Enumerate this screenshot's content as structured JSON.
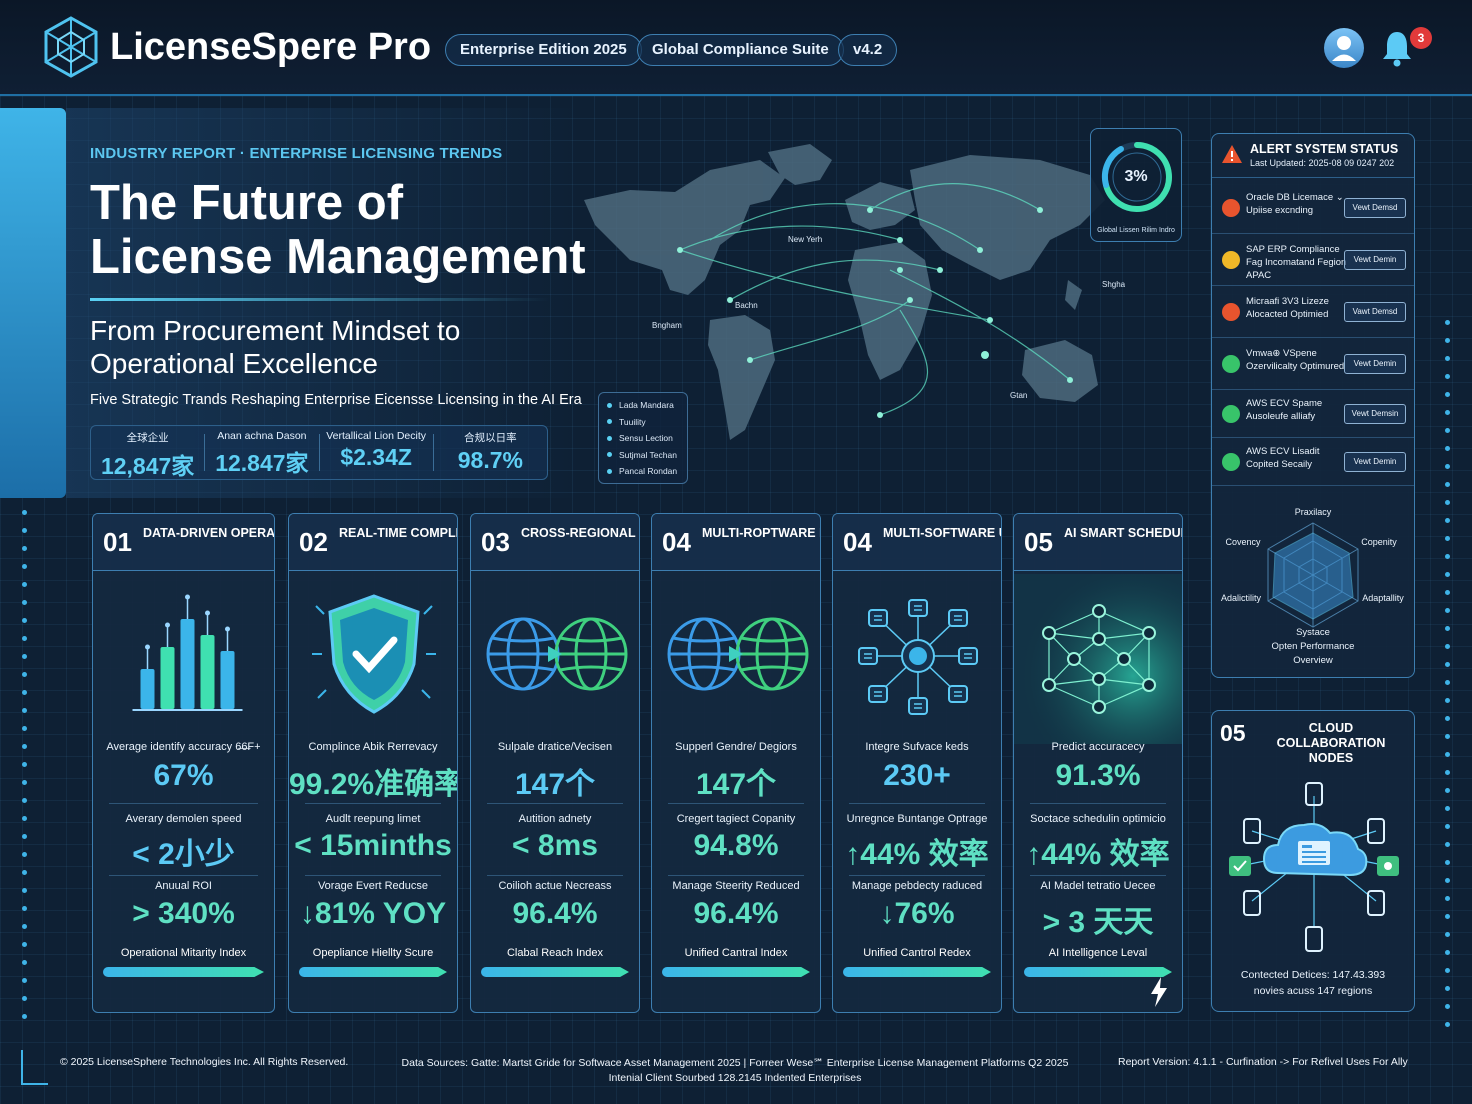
{
  "header": {
    "app_name": "LicenseSpere Pro",
    "pills": [
      "Enterprise Edition 2025",
      "Global Compliance Suite",
      "v4.2"
    ],
    "notification_count": "3"
  },
  "hero": {
    "kicker": "INDUSTRY REPORT · ENTERPRISE LICENSING TRENDS",
    "title_line1": "The Future of",
    "title_line2": "License Management",
    "subtitle_line1": "From Procurement Mindset to",
    "subtitle_line2": "Operational Excellence",
    "tagline": "Five Strategic Trands Reshaping Enterprise Eicensse Licensing in the AI Era",
    "stats": [
      {
        "label": "全球企业",
        "value": "12,847家"
      },
      {
        "label": "Anan achna Dason",
        "value": "12.847家"
      },
      {
        "label": "Vertallical Lion Decity",
        "value": "$2.34Z"
      },
      {
        "label": "合规以日率",
        "value": "98.7%"
      }
    ]
  },
  "map": {
    "city_labels": [
      "New Yerh",
      "Bachn",
      "Bngham",
      "Shghan",
      "Gtan"
    ],
    "legend": [
      "Lada Mandara",
      "Tuuility",
      "Sensu Lection",
      "Sutjmal Techan",
      "Pancal Rondan"
    ]
  },
  "gauge": {
    "value": "3%",
    "percent": 3,
    "caption": "Global Lissen Rilim Indro"
  },
  "alert_panel": {
    "title": "ALERT SYSTEM STATUS",
    "subtitle": "Last Updated: 2025-08 09 0247 202",
    "items": [
      {
        "status": "warning",
        "text": "Oracle DB Licemace ⌄ Upiise excnding",
        "button": "Vewt Demsd"
      },
      {
        "status": "caution",
        "text": "SAP ERP Compliance Fag Incomatand Fegion APAC",
        "button": "Vewt Demin"
      },
      {
        "status": "warning",
        "text": "Micraafi 3V3 Lizeze Alocacted Optimied",
        "button": "Vawt Demsd"
      },
      {
        "status": "ok",
        "text": "Vmwa⊕ VSpene Ozervilicalty Optimured",
        "button": "Vewt Demin"
      },
      {
        "status": "ok",
        "text": "AWS ECV Spame Ausoleufe alliafy",
        "button": "Vewt Demsin"
      },
      {
        "status": "ok",
        "text": "AWS ECV Lisadit Copited Secaily",
        "button": "Vewt Demin"
      }
    ],
    "colors": {
      "warning": "#e8542e",
      "caution": "#f0b828",
      "ok": "#38c46a"
    }
  },
  "radar": {
    "axes": [
      "Praxilacy",
      "Copenity",
      "Adaptallity",
      "Systace",
      "Adalictility",
      "Covency"
    ],
    "caption_line1": "Systace",
    "caption_line2": "Opten Performance",
    "caption_line3": "Overview"
  },
  "cloud_panel": {
    "number": "05",
    "title": "CLOUD COLLABORATION NODES",
    "footer_line1": "Contected Detices: 147.43.393",
    "footer_line2": "novies acuss 147 regions"
  },
  "cards": [
    {
      "num": "01",
      "title": "DATA-DRIVEN OPERATIONS",
      "illustration": "bar-chart-icon",
      "metrics": [
        {
          "label": "Average identify accuracy 6̶6̶F+",
          "value": "67%"
        },
        {
          "label": "Averary demolen speed",
          "value": "< 2小少"
        },
        {
          "label": "Anuual ROI",
          "value": "> 340%"
        }
      ],
      "index_label": "Operational Mitarity Index"
    },
    {
      "num": "02",
      "title": "REAL-TIME COMPLIANCE AUDIT",
      "illustration": "shield-check-icon",
      "metrics": [
        {
          "label": "Complince Abik Rerrevacy",
          "value": "99.2%准确率"
        },
        {
          "label": "Audlt reepung limet",
          "value": "< 15minths"
        },
        {
          "label": "Vorage Evert Reducse",
          "value": "↓81% YOY"
        }
      ],
      "index_label": "Opepliance Hiellty Scure"
    },
    {
      "num": "03",
      "title": "CROSS-REGIONAL COLLABORATION",
      "illustration": "dual-globe-icon",
      "metrics": [
        {
          "label": "Sulpale dratice/Vecisen",
          "value": "147个"
        },
        {
          "label": "Autition adnety",
          "value": "< 8ms"
        },
        {
          "label": "Coilioh actue Necreass",
          "value": "96.4%"
        }
      ],
      "index_label": "Clabal Reach Index"
    },
    {
      "num": "04",
      "title": "MULTI-ROPTWARE MANABORATION",
      "illustration": "dual-globe-icon",
      "metrics": [
        {
          "label": "Supperl Gendre/ Degiors",
          "value": "147个"
        },
        {
          "label": "Cregert tagiect Copanity",
          "value": "94.8%"
        },
        {
          "label": "Manage Steerity Reduced",
          "value": "96.4%"
        }
      ],
      "index_label": "Unified Cantral Index"
    },
    {
      "num": "04",
      "title": "MULTI-SOFTWARE UNITIEI MANAGEMENT",
      "illustration": "hub-network-icon",
      "metrics": [
        {
          "label": "Integre Sufvace keds",
          "value": "230+"
        },
        {
          "label": "Unregnce Buntange Optrage",
          "value": "↑44% 效率"
        },
        {
          "label": "Manage pebdecty raduced",
          "value": "↓76%"
        }
      ],
      "index_label": "Unified Cantrol Redex"
    },
    {
      "num": "05",
      "title": "AI SMART SCHEDULING & PREDICTION",
      "illustration": "neural-network-icon",
      "metrics": [
        {
          "label": "Predict accuracecy",
          "value": "91.3%"
        },
        {
          "label": "Soctace schedulin optimicio",
          "value": "↑44% 效率"
        },
        {
          "label": "AI Madel tetratio Uecee",
          "value": "> 3 天天"
        }
      ],
      "index_label": "AI Intelligence Leval"
    }
  ],
  "footer": {
    "copyright": "© 2025 LicenseSphere Technologies Inc.  All Rights Reserved.",
    "sources_line1": "Data Sources: Gatte: Martst Gride for Softwace Asset Management 2025 | Forreer Wese℠ Enterprise License Management Platforms Q2 2025",
    "sources_line2": "Intenial Client Sourbed  128.2145  Indented Enterprises",
    "version": "Report Version: 4.1.1 - Curfination -> For Refivel Uses For Ally"
  }
}
